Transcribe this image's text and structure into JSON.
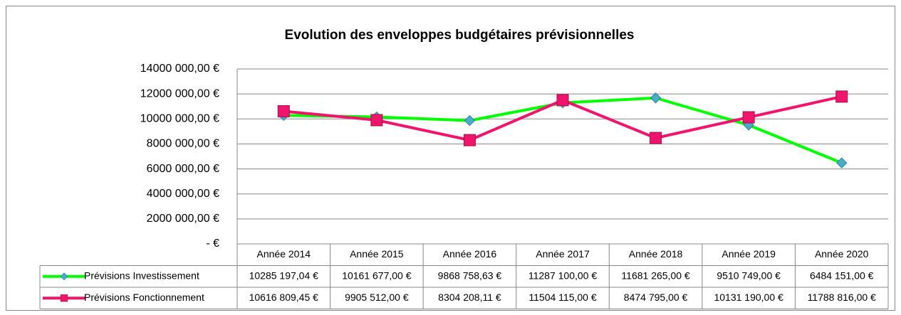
{
  "chart_data": {
    "type": "line",
    "title": "Evolution des enveloppes budgétaires prévisionnelles",
    "categories": [
      "Année 2014",
      "Année 2015",
      "Année 2016",
      "Année 2017",
      "Année 2018",
      "Année 2019",
      "Année 2020"
    ],
    "series": [
      {
        "name": "Prévisions Investissement",
        "color": "#00ff00",
        "marker": "diamond",
        "marker_color": "#4bacc6",
        "values": [
          10285197.04,
          10161677,
          9868758.63,
          11287100,
          11681265,
          9510749,
          6484151
        ],
        "value_labels": [
          "10285 197,04 €",
          "10161 677,00 €",
          "9868 758,63 €",
          "11287 100,00 €",
          "11681 265,00 €",
          "9510 749,00 €",
          "6484 151,00 €"
        ]
      },
      {
        "name": "Prévisions Fonctionnement",
        "color": "#f0146c",
        "marker": "square",
        "marker_color": "#f0146c",
        "values": [
          10616809.45,
          9905512,
          8304208.11,
          11504115,
          8474795,
          10131190,
          11788816
        ],
        "value_labels": [
          "10616 809,45 €",
          "9905 512,00 €",
          "8304 208,11 €",
          "11504 115,00 €",
          "8474 795,00 €",
          "10131 190,00 €",
          "11788 816,00 €"
        ]
      }
    ],
    "ylim": [
      0,
      14000000
    ],
    "yticks": [
      {
        "value": 0,
        "label": "-   €"
      },
      {
        "value": 2000000,
        "label": "2000 000,00 €"
      },
      {
        "value": 4000000,
        "label": "4000 000,00 €"
      },
      {
        "value": 6000000,
        "label": "6000 000,00 €"
      },
      {
        "value": 8000000,
        "label": "8000 000,00 €"
      },
      {
        "value": 10000000,
        "label": "10000 000,00 €"
      },
      {
        "value": 12000000,
        "label": "12000 000,00 €"
      },
      {
        "value": 14000000,
        "label": "14000 000,00 €"
      }
    ],
    "grid": true
  }
}
